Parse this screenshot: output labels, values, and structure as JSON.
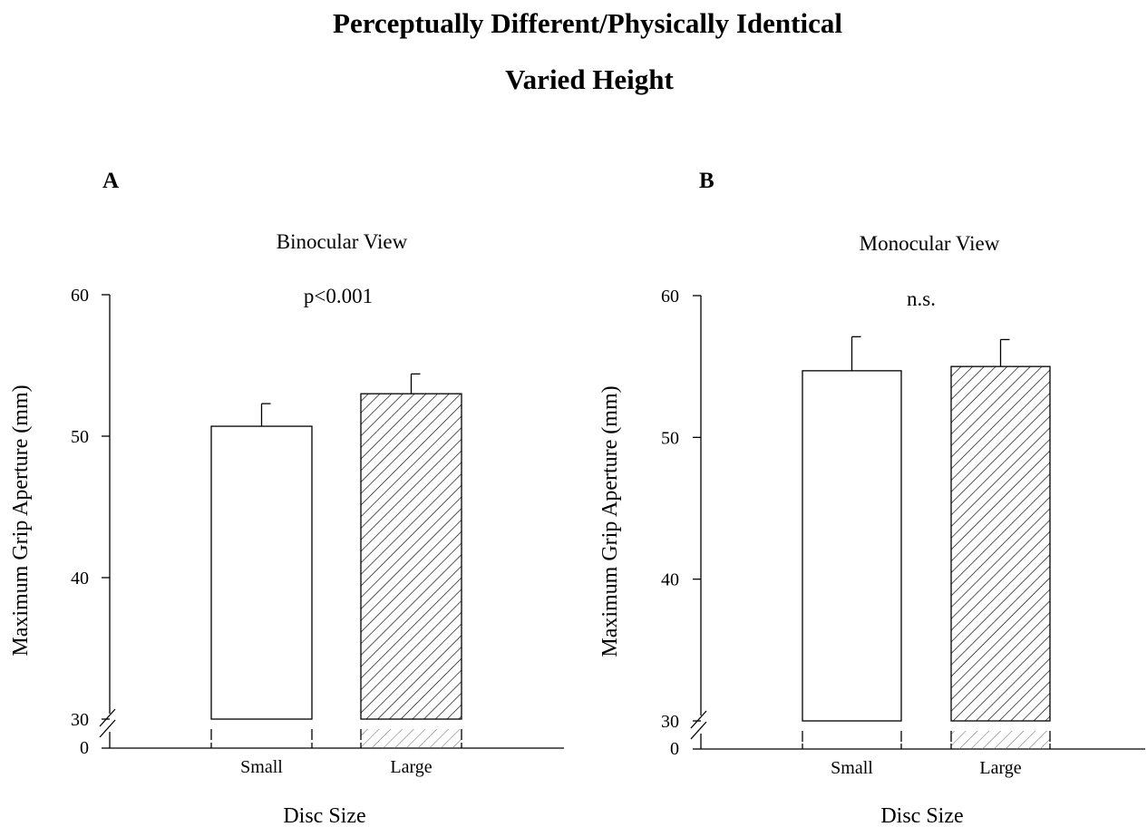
{
  "figure": {
    "title_line1": "Perceptually Different/Physically Identical",
    "title_line2": "Varied Height"
  },
  "chart_data": [
    {
      "type": "bar",
      "panel": "A",
      "title": "Binocular View",
      "annotation": "p<0.001",
      "xlabel": "Disc Size",
      "ylabel": "Maximum Grip Aperture (mm)",
      "categories": [
        "Small",
        "Large"
      ],
      "values": [
        50.7,
        53.0
      ],
      "errors": [
        1.6,
        1.4
      ],
      "fills": [
        "none",
        "hatched"
      ],
      "yticks": [
        30,
        40,
        50,
        60
      ],
      "ybreak_label": "0",
      "ylim": [
        30,
        60
      ],
      "grid": false,
      "axis_break": true
    },
    {
      "type": "bar",
      "panel": "B",
      "title": "Monocular View",
      "annotation": "n.s.",
      "xlabel": "Disc Size",
      "ylabel": "Maximum Grip Aperture (mm)",
      "categories": [
        "Small",
        "Large"
      ],
      "values": [
        54.7,
        55.0
      ],
      "errors": [
        2.4,
        1.9
      ],
      "fills": [
        "none",
        "hatched"
      ],
      "yticks": [
        30,
        40,
        50,
        60
      ],
      "ybreak_label": "0",
      "ylim": [
        30,
        60
      ],
      "grid": false,
      "axis_break": true
    }
  ]
}
